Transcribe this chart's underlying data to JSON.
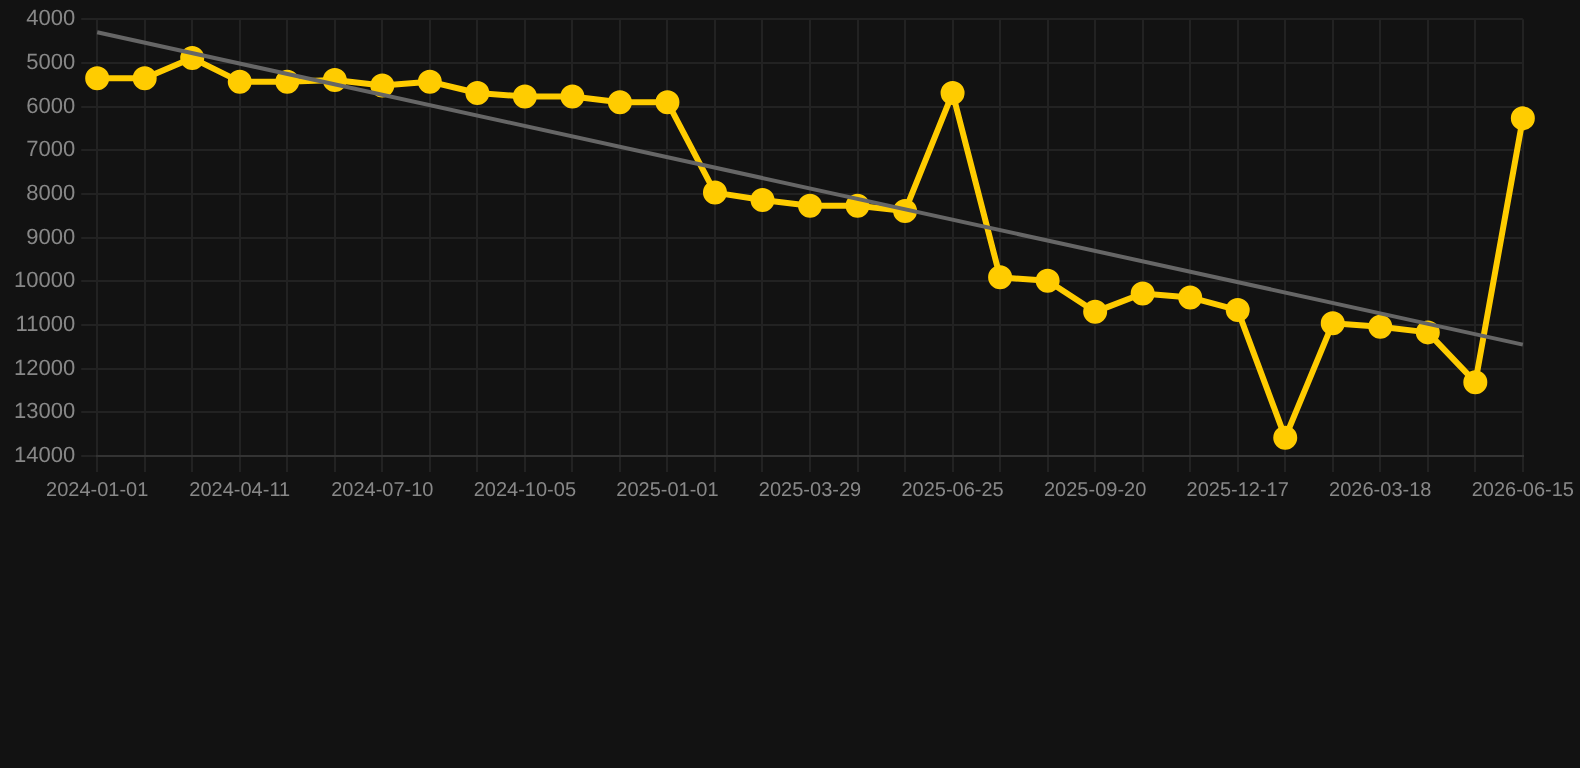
{
  "chart_data": {
    "type": "line",
    "categories": [
      "2024-01-01",
      null,
      null,
      "2024-04-11",
      null,
      null,
      "2024-07-10",
      null,
      null,
      "2024-10-05",
      null,
      null,
      "2025-01-01",
      null,
      null,
      "2025-03-29",
      null,
      null,
      "2025-06-25",
      null,
      null,
      "2025-09-20",
      null,
      null,
      "2025-12-17",
      null,
      null,
      "2026-03-18",
      null,
      null,
      "2026-06-15"
    ],
    "series": [
      {
        "color": "#ffcc00",
        "marker": "circle",
        "values": [
          5350,
          5350,
          4890,
          5430,
          5430,
          5390,
          5520,
          5430,
          5690,
          5770,
          5770,
          5900,
          5900,
          7970,
          8140,
          8270,
          8270,
          8390,
          5690,
          9910,
          9990,
          10700,
          10280,
          10370,
          10660,
          13580,
          10960,
          11040,
          11170,
          12310,
          6270
        ]
      },
      {
        "type": "line",
        "color": "#666666",
        "marker": "none",
        "values": [
          4300,
          null,
          null,
          null,
          null,
          null,
          null,
          null,
          null,
          null,
          null,
          null,
          null,
          null,
          null,
          null,
          null,
          null,
          null,
          null,
          null,
          null,
          null,
          null,
          null,
          null,
          null,
          null,
          null,
          null,
          11450
        ]
      }
    ],
    "ylim": [
      14000,
      4000
    ],
    "yticks": [
      4000,
      5000,
      6000,
      7000,
      8000,
      9000,
      10000,
      11000,
      12000,
      13000,
      14000
    ],
    "grid": true,
    "legend": false
  }
}
